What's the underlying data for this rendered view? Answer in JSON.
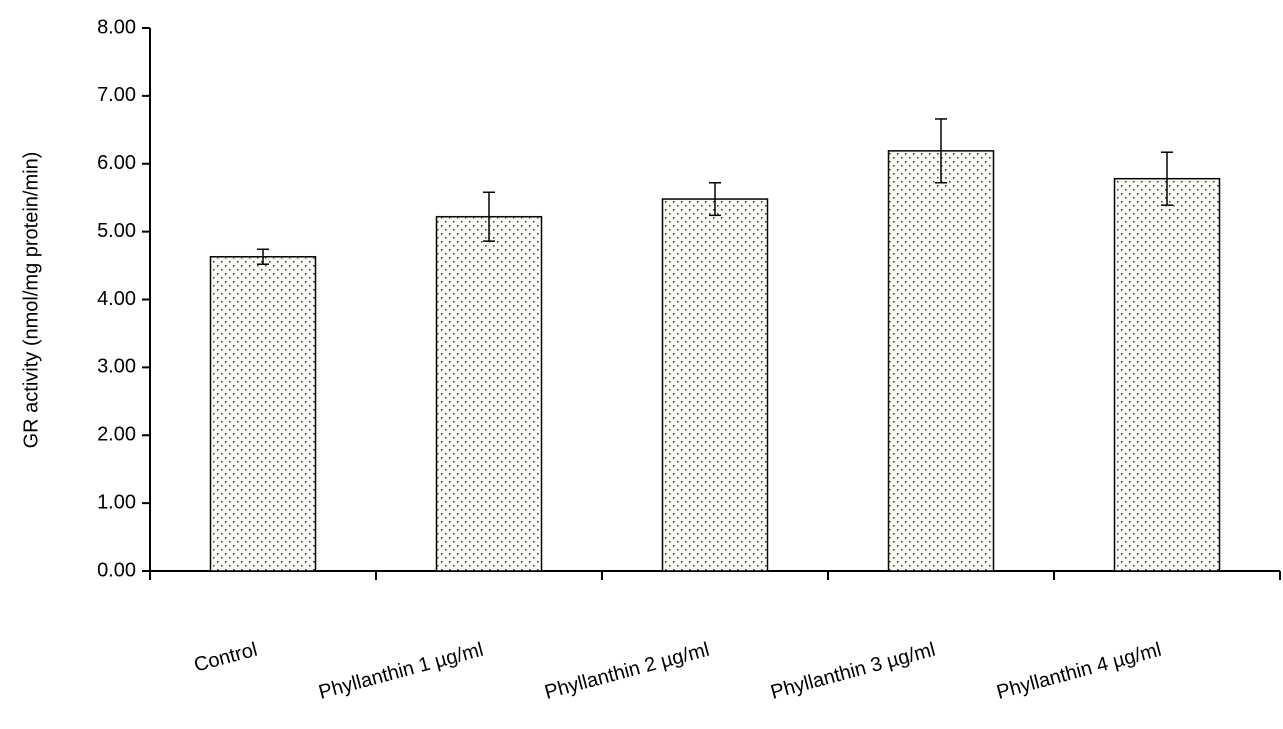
{
  "chart_data": {
    "type": "bar",
    "y_label": "GR activity (nmol/mg protein/min)",
    "categories": [
      "Control",
      "Phyllanthin 1 µg/ml",
      "Phyllanthin 2 µg/ml",
      "Phyllanthin 3 µg/ml",
      "Phyllanthin 4 µg/ml"
    ],
    "values": [
      4.63,
      5.22,
      5.48,
      6.19,
      5.78
    ],
    "errors": [
      0.11,
      0.36,
      0.24,
      0.47,
      0.39
    ],
    "color": "#000000",
    "ylim": [
      0,
      8
    ],
    "yticks": [
      {
        "value": 0,
        "label": "0.00"
      },
      {
        "value": 1,
        "label": "1.00"
      },
      {
        "value": 2,
        "label": "2.00"
      },
      {
        "value": 3,
        "label": "3.00"
      },
      {
        "value": 4,
        "label": "4.00"
      },
      {
        "value": 5,
        "label": "5.00"
      },
      {
        "value": 6,
        "label": "6.00"
      },
      {
        "value": 7,
        "label": "7.00"
      },
      {
        "value": 8,
        "label": "8.00"
      }
    ],
    "grid": false
  }
}
